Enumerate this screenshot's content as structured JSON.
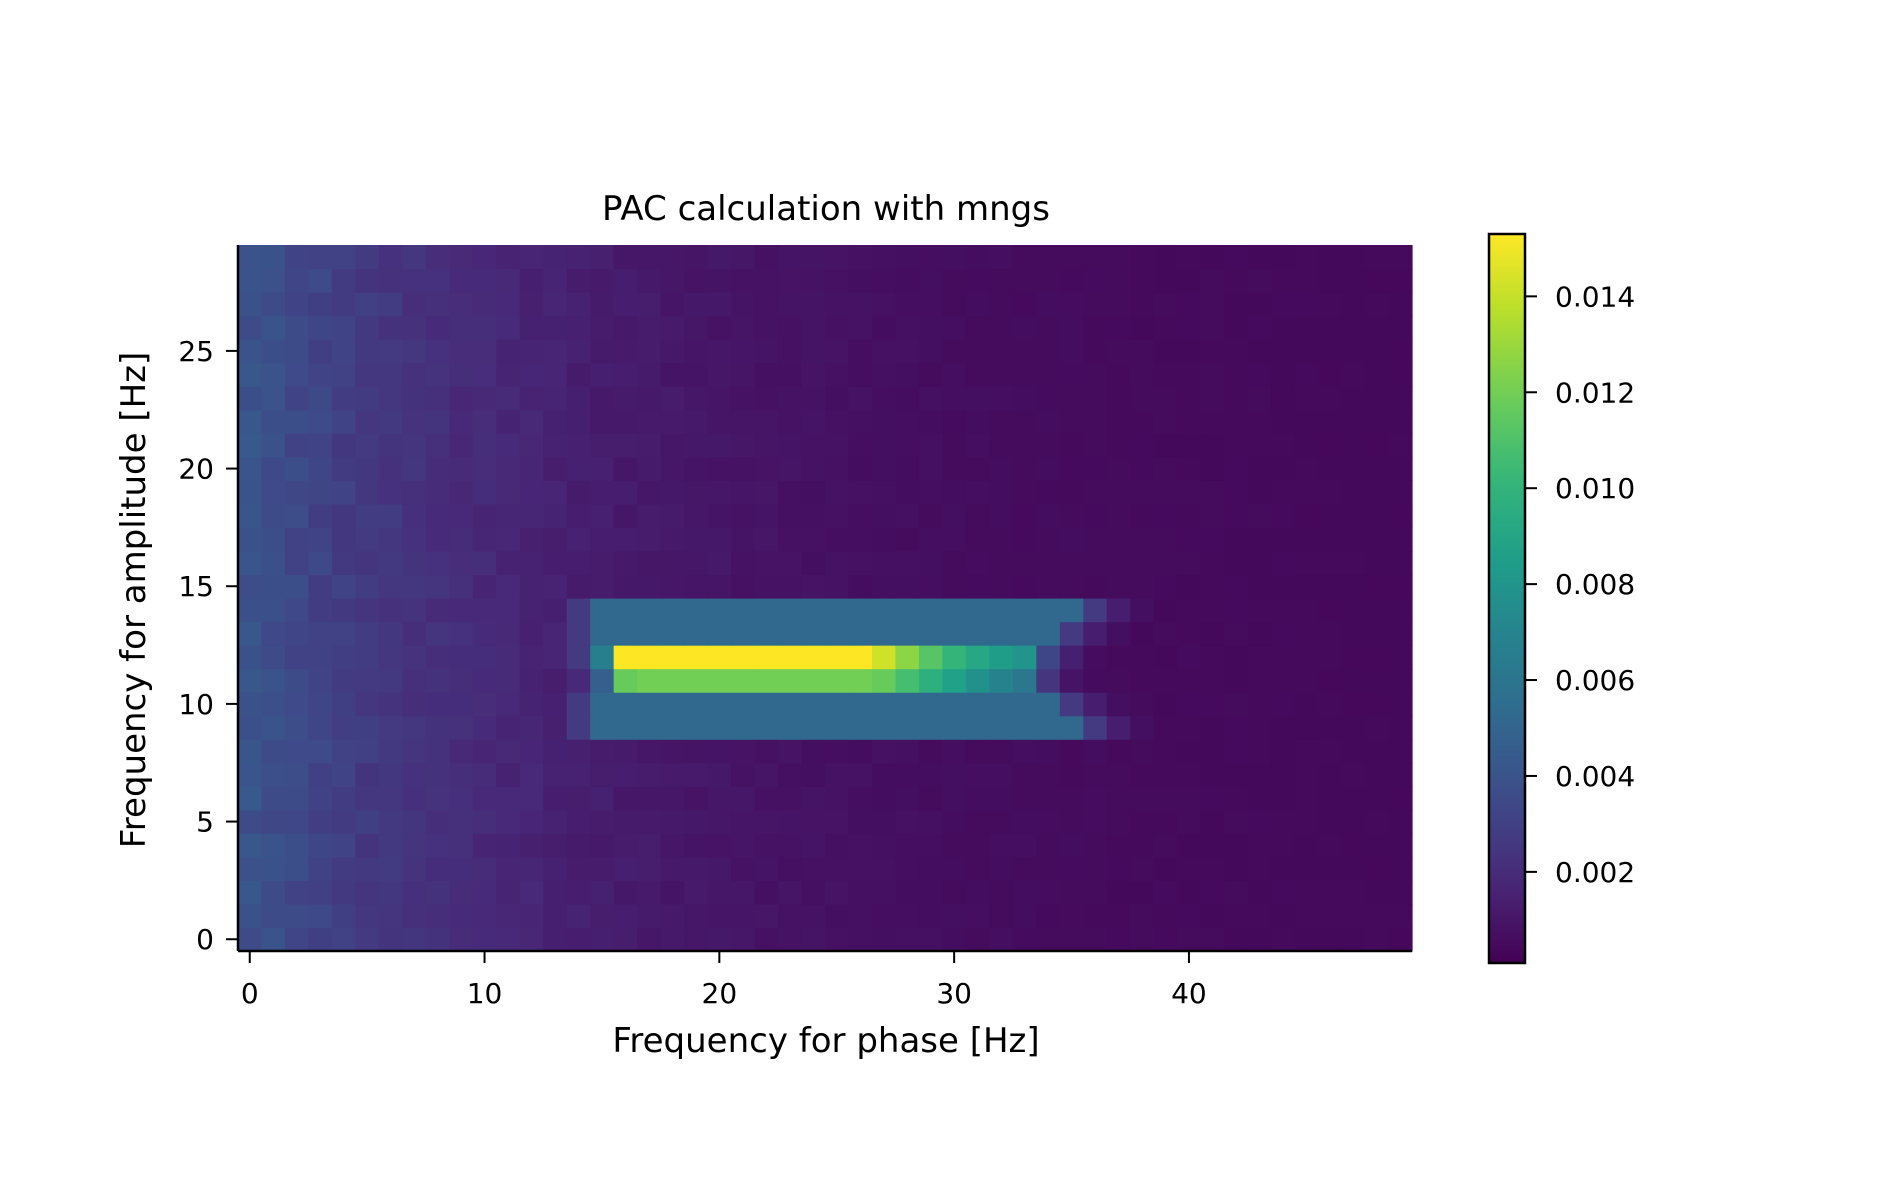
{
  "chart_data": {
    "type": "heatmap",
    "title": "PAC calculation with mngs",
    "xlabel": "Frequency for phase [Hz]",
    "ylabel": "Frequency for amplitude [Hz]",
    "x_range": [
      -0.5,
      49.5
    ],
    "y_range": [
      -0.5,
      29.5
    ],
    "x_ticks": [
      0,
      10,
      20,
      30,
      40
    ],
    "y_ticks": [
      0,
      5,
      10,
      15,
      20,
      25
    ],
    "grid": false,
    "colormap": "viridis",
    "colorbar": {
      "range": [
        0.0001,
        0.0153
      ],
      "ticks": [
        0.002,
        0.004,
        0.006,
        0.008,
        0.01,
        0.012,
        0.014
      ],
      "tick_labels": [
        "0.002",
        "0.004",
        "0.006",
        "0.008",
        "0.010",
        "0.012",
        "0.014"
      ]
    },
    "grid_shape": [
      30,
      50
    ],
    "description_of_values": "PAC values, dominant coupling around amplitude 11-12 Hz and phase 16-33 Hz",
    "rows": [
      {
        "y": 12,
        "x_from": 16,
        "x_to": 33,
        "peak_x": 20,
        "peak_value": 0.0153
      },
      {
        "y": 11,
        "x_from": 16,
        "x_to": 33,
        "peak_x": 22,
        "peak_value": 0.0118
      },
      {
        "y": 13,
        "x_from": 13,
        "x_to": 35,
        "peak_value": 0.0055
      },
      {
        "y": 10,
        "x_from": 13,
        "x_to": 35,
        "peak_value": 0.0055
      }
    ]
  }
}
